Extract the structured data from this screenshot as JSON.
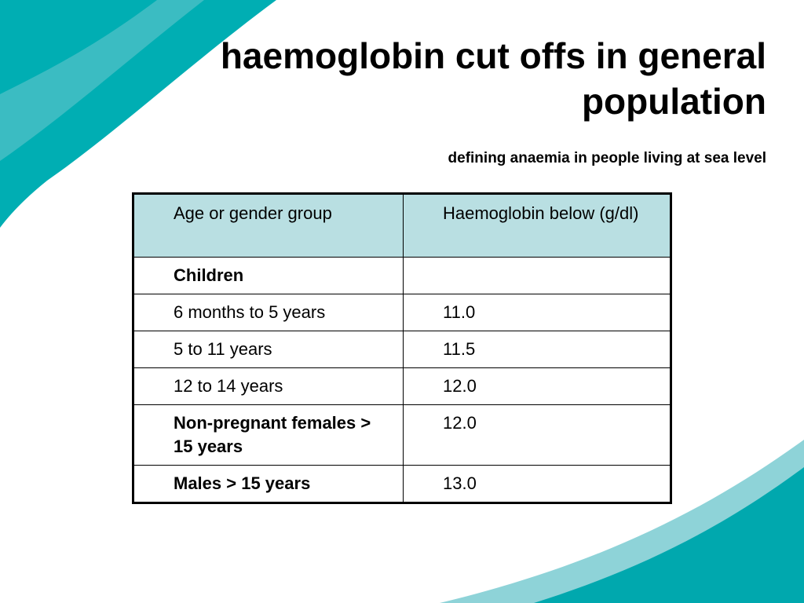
{
  "slide": {
    "title": "haemoglobin cut offs in general population",
    "subtitle": "defining anaemia in people living at sea level"
  },
  "table": {
    "headers": [
      "Age or gender group",
      "Haemoglobin below (g/dl)"
    ],
    "rows": [
      {
        "group": "Children",
        "value": "",
        "bold": true
      },
      {
        "group": "6 months to 5 years",
        "value": "11.0",
        "bold": false
      },
      {
        "group": "5 to 11 years",
        "value": "11.5",
        "bold": false
      },
      {
        "group": "12 to 14 years",
        "value": "12.0",
        "bold": false
      },
      {
        "group": "Non-pregnant females > 15 years",
        "value": "12.0",
        "bold": true
      },
      {
        "group": "Males > 15 years",
        "value": "13.0",
        "bold": true
      }
    ]
  },
  "colors": {
    "teal_dark": "#00a8ae",
    "teal_light": "#8ed3d8",
    "header_fill": "#b9dfe2"
  }
}
